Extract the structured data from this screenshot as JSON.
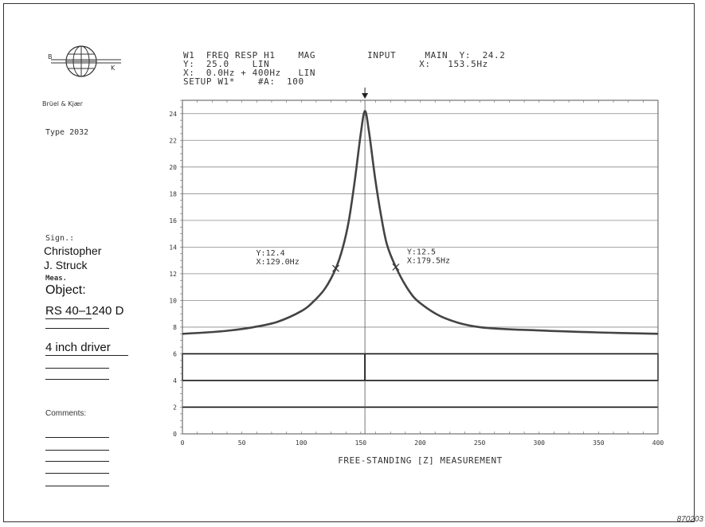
{
  "sidebar": {
    "brand": "Brüel & Kjær",
    "logo_letters": [
      "B",
      "K"
    ],
    "type_label": "Type 2032",
    "sign_label": "Sign.:",
    "signer": [
      "Christopher",
      "J. Struck"
    ],
    "meas_label": "Meas.",
    "object_label": "Object:",
    "object_value": "RS 40–1240 D",
    "object_desc": "4 inch driver",
    "comments_label": "Comments:"
  },
  "header": {
    "line1": "W1  FREQ RESP H1    MAG         INPUT     MAIN  Y:  24.2",
    "line2": "Y:  25.0    LIN                          X:   153.5Hz",
    "line3": "X:  0.0Hz + 400Hz   LIN",
    "line4": "SETUP W1*    #A:  100"
  },
  "cursor_labels": [
    {
      "line1": "Y:12.4",
      "line2": "X:129.0Hz"
    },
    {
      "line1": "Y:12.5",
      "line2": "X:179.5Hz"
    }
  ],
  "figure_number": "870203",
  "chart_data": {
    "type": "line",
    "title": "",
    "xlabel": "FREE-STANDING [Z] MEASUREMENT",
    "ylabel": "",
    "xlim": [
      0,
      400
    ],
    "ylim": [
      0,
      25
    ],
    "x_ticks": [
      0,
      50,
      100,
      150,
      200,
      250,
      300,
      350,
      400
    ],
    "y_ticks": [
      0,
      2,
      4,
      6,
      8,
      10,
      12,
      14,
      16,
      18,
      20,
      22,
      24
    ],
    "grid": true,
    "cursor_x": 153.5,
    "series": [
      {
        "name": "",
        "x": [
          0,
          20,
          40,
          60,
          80,
          100,
          110,
          120,
          129,
          135,
          140,
          145,
          150,
          153.5,
          157,
          162,
          167,
          172,
          179.5,
          190,
          200,
          220,
          250,
          300,
          350,
          400
        ],
        "y": [
          7.5,
          7.6,
          7.75,
          8.0,
          8.4,
          9.2,
          9.9,
          10.9,
          12.4,
          14.0,
          16.0,
          19.0,
          22.5,
          24.2,
          22.6,
          19.2,
          16.4,
          14.2,
          12.5,
          10.8,
          9.8,
          8.7,
          8.0,
          7.75,
          7.6,
          7.5
        ]
      }
    ],
    "markers": [
      {
        "x": 129.0,
        "y": 12.4
      },
      {
        "x": 179.5,
        "y": 12.5
      }
    ],
    "boxes": [
      {
        "y_from": 4,
        "y_to": 6
      },
      {
        "y_from": 2,
        "y_to": 2
      }
    ]
  }
}
